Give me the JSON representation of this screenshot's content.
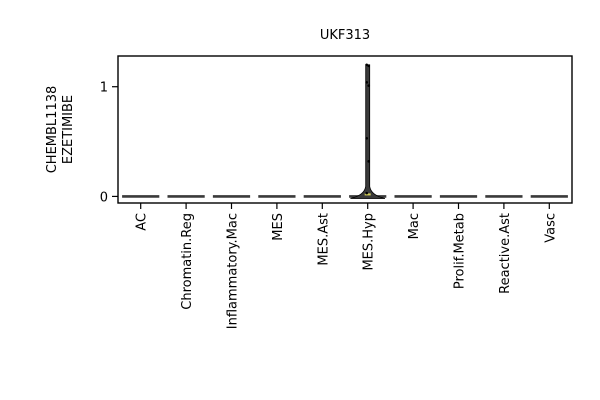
{
  "chart_data": {
    "type": "violin",
    "title": "UKF313",
    "ylabel_lines": [
      "CHEMBL1138",
      "EZETIMIBE"
    ],
    "xlabel": "",
    "categories": [
      "AC",
      "Chromatin.Reg",
      "Inflammatory.Mac",
      "MES",
      "MES.Ast",
      "MES.Hyp",
      "Mac",
      "Prolif.Metab",
      "Reactive.Ast",
      "Vasc"
    ],
    "ylim": [
      -0.06,
      1.28
    ],
    "yticks": [
      0,
      1
    ],
    "ytick_labels": [
      "0",
      "1"
    ],
    "series": [
      {
        "category": "MES.Hyp",
        "max": 1.2,
        "points": [
          1.2,
          1.19,
          1.04,
          1.01,
          0.53,
          0.32,
          0.03
        ]
      }
    ],
    "colors": {
      "violin_fill": "#3a3a3a",
      "violin_edge": "#000000",
      "median_line": "#d6d25a",
      "baseline": "#3a3a3a",
      "axes": "#000000"
    },
    "grid": false,
    "legend": "none"
  }
}
